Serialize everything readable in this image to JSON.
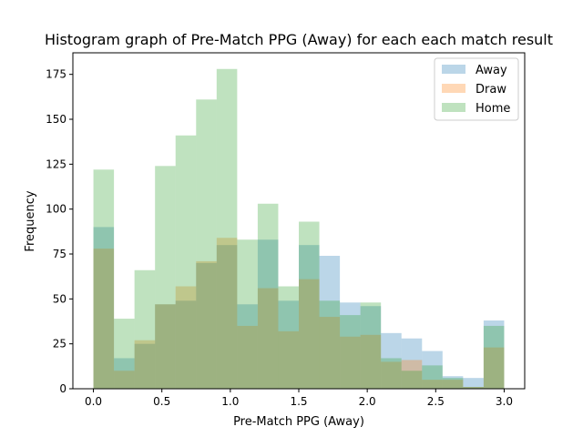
{
  "chart_data": {
    "type": "bar",
    "title": "Histogram graph of Pre-Match PPG (Away) for each each match result",
    "xlabel": "Pre-Match PPG (Away)",
    "ylabel": "Frequency",
    "xlim": [
      -0.15,
      3.15
    ],
    "ylim": [
      0,
      187
    ],
    "xticks": [
      0.0,
      0.5,
      1.0,
      1.5,
      2.0,
      2.5,
      3.0
    ],
    "xtick_labels": [
      "0.0",
      "0.5",
      "1.0",
      "1.5",
      "2.0",
      "2.5",
      "3.0"
    ],
    "yticks": [
      0,
      25,
      50,
      75,
      100,
      125,
      150,
      175
    ],
    "ytick_labels": [
      "0",
      "25",
      "50",
      "75",
      "100",
      "125",
      "150",
      "175"
    ],
    "bin_edges": [
      0.0,
      0.15,
      0.3,
      0.45,
      0.6,
      0.75,
      0.9,
      1.05,
      1.2,
      1.35,
      1.5,
      1.65,
      1.8,
      1.95,
      2.1,
      2.25,
      2.4,
      2.55,
      2.7,
      2.85,
      3.0
    ],
    "legend_position": "top-right",
    "grid": false,
    "series": [
      {
        "name": "Away",
        "color": "#1f77b4",
        "alpha": 0.3,
        "values": [
          90,
          17,
          25,
          47,
          49,
          70,
          80,
          47,
          83,
          49,
          80,
          74,
          48,
          46,
          31,
          28,
          21,
          7,
          6,
          38
        ]
      },
      {
        "name": "Draw",
        "color": "#ff7f0e",
        "alpha": 0.3,
        "values": [
          78,
          10,
          27,
          47,
          57,
          71,
          84,
          35,
          56,
          32,
          61,
          40,
          29,
          30,
          15,
          16,
          5,
          5,
          1,
          23
        ]
      },
      {
        "name": "Home",
        "color": "#2ca02c",
        "alpha": 0.3,
        "values": [
          122,
          39,
          66,
          124,
          141,
          161,
          178,
          83,
          103,
          57,
          93,
          49,
          41,
          48,
          17,
          10,
          13,
          6,
          1,
          35
        ]
      }
    ]
  }
}
